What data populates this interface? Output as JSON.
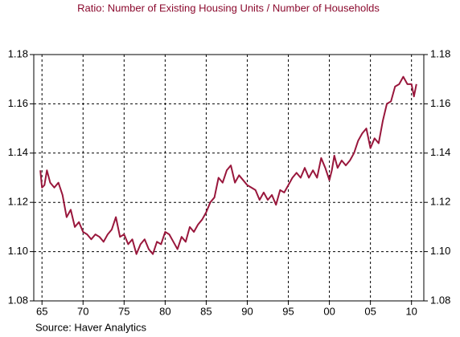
{
  "chart_data": {
    "type": "line",
    "title": "Ratio: Number of Existing Housing Units / Number of Households",
    "source": "Source: Haver Analytics",
    "x": [
      1964.8,
      1965.0,
      1965.3,
      1965.6,
      1966,
      1966.5,
      1967,
      1967.5,
      1968,
      1968.5,
      1969,
      1969.5,
      1970,
      1970.5,
      1971,
      1971.5,
      1972,
      1972.5,
      1973,
      1973.5,
      1974,
      1974.5,
      1975,
      1975.5,
      1976,
      1976.5,
      1977,
      1977.5,
      1978,
      1978.5,
      1979,
      1979.5,
      1980,
      1980.5,
      1981,
      1981.5,
      1982,
      1982.5,
      1983,
      1983.5,
      1984,
      1984.5,
      1985,
      1985.5,
      1986,
      1986.5,
      1987,
      1987.5,
      1988,
      1988.5,
      1989,
      1989.5,
      1990,
      1990.5,
      1991,
      1991.5,
      1992,
      1992.5,
      1993,
      1993.5,
      1994,
      1994.5,
      1995,
      1995.5,
      1996,
      1996.5,
      1997,
      1997.5,
      1998,
      1998.5,
      1999,
      1999.5,
      2000,
      2000.3,
      2000.6,
      2001,
      2001.5,
      2002,
      2002.5,
      2003,
      2003.5,
      2004,
      2004.5,
      2005,
      2005.5,
      2006,
      2006.5,
      2007,
      2007.5,
      2008,
      2008.5,
      2009,
      2009.5,
      2010,
      2010.3,
      2010.6
    ],
    "series": [
      {
        "name": "Ratio",
        "color": "#99173c",
        "values": [
          1.133,
          1.126,
          1.127,
          1.133,
          1.128,
          1.126,
          1.128,
          1.123,
          1.114,
          1.117,
          1.11,
          1.112,
          1.108,
          1.107,
          1.105,
          1.107,
          1.106,
          1.104,
          1.107,
          1.109,
          1.114,
          1.106,
          1.107,
          1.103,
          1.105,
          1.099,
          1.103,
          1.105,
          1.101,
          1.099,
          1.104,
          1.103,
          1.108,
          1.107,
          1.104,
          1.101,
          1.106,
          1.104,
          1.11,
          1.108,
          1.111,
          1.113,
          1.116,
          1.12,
          1.122,
          1.13,
          1.128,
          1.133,
          1.135,
          1.128,
          1.131,
          1.129,
          1.127,
          1.126,
          1.125,
          1.121,
          1.124,
          1.121,
          1.123,
          1.119,
          1.125,
          1.124,
          1.127,
          1.13,
          1.132,
          1.13,
          1.134,
          1.13,
          1.133,
          1.13,
          1.138,
          1.134,
          1.129,
          1.133,
          1.139,
          1.134,
          1.137,
          1.135,
          1.137,
          1.14,
          1.145,
          1.148,
          1.15,
          1.142,
          1.146,
          1.144,
          1.153,
          1.16,
          1.161,
          1.167,
          1.168,
          1.171,
          1.168,
          1.168,
          1.163,
          1.168
        ]
      }
    ],
    "xlim": [
      1964,
      2011.5
    ],
    "xticks": [
      {
        "value": 1965,
        "label": "65"
      },
      {
        "value": 1970,
        "label": "70"
      },
      {
        "value": 1975,
        "label": "75"
      },
      {
        "value": 1980,
        "label": "80"
      },
      {
        "value": 1985,
        "label": "85"
      },
      {
        "value": 1990,
        "label": "90"
      },
      {
        "value": 1995,
        "label": "95"
      },
      {
        "value": 2000,
        "label": "00"
      },
      {
        "value": 2005,
        "label": "05"
      },
      {
        "value": 2010,
        "label": "10"
      }
    ],
    "ylim": [
      1.08,
      1.18
    ],
    "yticks": [
      1.08,
      {
        "value": 1.1,
        "label": "1.10"
      },
      1.12,
      1.14,
      1.16,
      1.18
    ],
    "y2lim": [
      1.08,
      1.18
    ],
    "y2ticks": [
      1.08,
      {
        "value": 1.1,
        "label": "1.10"
      },
      1.12,
      1.14,
      1.16,
      1.18
    ],
    "grid": true
  }
}
